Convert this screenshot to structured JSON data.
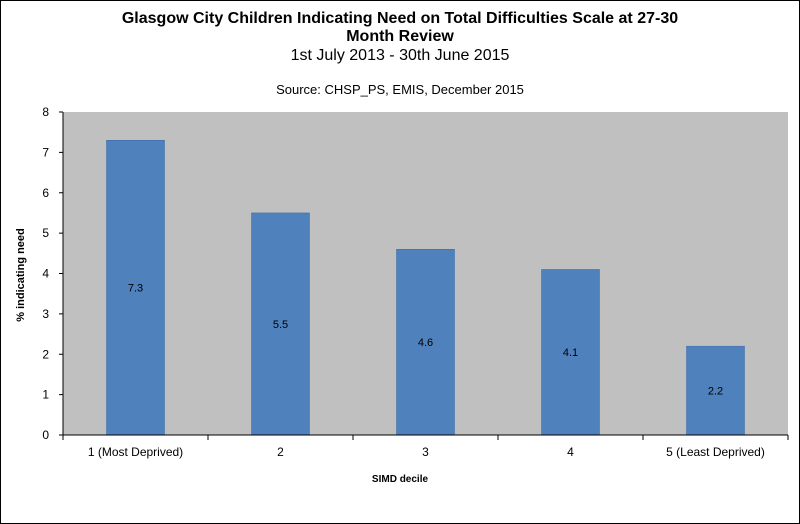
{
  "chart_data": {
    "type": "bar",
    "title": "Glasgow City Children Indicating Need on Total Difficulties Scale at 27-30 Month Review",
    "title_lines": [
      "Glasgow City Children Indicating Need on Total Difficulties Scale at 27-30",
      "Month Review"
    ],
    "subtitle": "1st July 2013 - 30th June 2015",
    "source": "Source: CHSP_PS, EMIS, December 2015",
    "xlabel": "SIMD decile",
    "ylabel": "% indicating need",
    "categories": [
      "1 (Most Deprived)",
      "2",
      "3",
      "4",
      "5 (Least Deprived)"
    ],
    "values": [
      7.3,
      5.5,
      4.6,
      4.1,
      2.2
    ],
    "data_labels": [
      "7.3",
      "5.5",
      "4.6",
      "4.1",
      "2.2"
    ],
    "ylim": [
      0,
      8
    ],
    "yticks": [
      0,
      1,
      2,
      3,
      4,
      5,
      6,
      7,
      8
    ],
    "grid": false,
    "legend": "none",
    "colors": {
      "bar": "#4f81bd",
      "bar_edge": "#3a6aa8",
      "plot_background": "#c0c0c0",
      "axis": "#000000"
    }
  }
}
